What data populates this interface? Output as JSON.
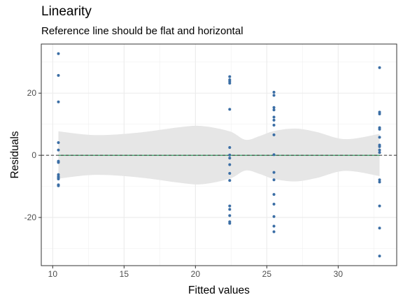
{
  "chart_data": {
    "type": "scatter",
    "title": "Linearity",
    "subtitle": "Reference line should be flat and horizontal",
    "xlabel": "Fitted values",
    "ylabel": "Residuals",
    "xlim": [
      9.2,
      34.1
    ],
    "ylim": [
      -35.5,
      35.8
    ],
    "x_ticks": [
      10,
      15,
      20,
      25,
      30
    ],
    "y_ticks": [
      -20,
      0,
      20
    ],
    "x_tick_labels": [
      "10",
      "15",
      "20",
      "25",
      "30"
    ],
    "y_tick_labels": [
      "-20",
      "0",
      "20"
    ],
    "grid": true,
    "reference_line_y": 0,
    "points_color": "#3b6ea5",
    "smooth_color": "#1a9850",
    "band_color": "#e6e6e6",
    "points": [
      {
        "x": 10.4,
        "y": 32.7
      },
      {
        "x": 10.4,
        "y": 25.7
      },
      {
        "x": 10.4,
        "y": 17.2
      },
      {
        "x": 10.4,
        "y": 4.1
      },
      {
        "x": 10.4,
        "y": 1.7
      },
      {
        "x": 10.4,
        "y": -1.9
      },
      {
        "x": 10.4,
        "y": -2.3
      },
      {
        "x": 10.4,
        "y": -6.2
      },
      {
        "x": 10.4,
        "y": -6.8
      },
      {
        "x": 10.4,
        "y": -7.2
      },
      {
        "x": 10.4,
        "y": -7.6
      },
      {
        "x": 10.4,
        "y": -9.5
      },
      {
        "x": 10.4,
        "y": -9.8
      },
      {
        "x": 22.4,
        "y": 25.3
      },
      {
        "x": 22.4,
        "y": 24.3
      },
      {
        "x": 22.4,
        "y": 23.8
      },
      {
        "x": 22.4,
        "y": 23.2
      },
      {
        "x": 22.4,
        "y": 14.8
      },
      {
        "x": 22.4,
        "y": 2.5
      },
      {
        "x": 22.4,
        "y": 0.1
      },
      {
        "x": 22.4,
        "y": -0.9
      },
      {
        "x": 22.4,
        "y": -3.0
      },
      {
        "x": 22.4,
        "y": -5.8
      },
      {
        "x": 22.4,
        "y": -8.1
      },
      {
        "x": 22.4,
        "y": -16.3
      },
      {
        "x": 22.4,
        "y": -17.4
      },
      {
        "x": 22.4,
        "y": -19.4
      },
      {
        "x": 22.4,
        "y": -21.4
      },
      {
        "x": 22.4,
        "y": -21.9
      },
      {
        "x": 25.5,
        "y": 20.3
      },
      {
        "x": 25.5,
        "y": 19.3
      },
      {
        "x": 25.5,
        "y": 15.4
      },
      {
        "x": 25.5,
        "y": 14.6
      },
      {
        "x": 25.5,
        "y": 12.3
      },
      {
        "x": 25.5,
        "y": 11.3
      },
      {
        "x": 25.5,
        "y": 9.7
      },
      {
        "x": 25.5,
        "y": 6.6
      },
      {
        "x": 25.5,
        "y": 0.2
      },
      {
        "x": 25.5,
        "y": -5.5
      },
      {
        "x": 25.5,
        "y": -7.9
      },
      {
        "x": 25.5,
        "y": -12.6
      },
      {
        "x": 25.5,
        "y": -15.7
      },
      {
        "x": 25.5,
        "y": -19.7
      },
      {
        "x": 25.5,
        "y": -22.8
      },
      {
        "x": 25.5,
        "y": -24.6
      },
      {
        "x": 32.9,
        "y": 28.2
      },
      {
        "x": 32.9,
        "y": 13.9
      },
      {
        "x": 32.9,
        "y": 13.3
      },
      {
        "x": 32.9,
        "y": 8.9
      },
      {
        "x": 32.9,
        "y": 8.4
      },
      {
        "x": 32.9,
        "y": 5.8
      },
      {
        "x": 32.9,
        "y": 3.3
      },
      {
        "x": 32.9,
        "y": 2.8
      },
      {
        "x": 32.9,
        "y": 1.7
      },
      {
        "x": 32.9,
        "y": 0.9
      },
      {
        "x": 32.9,
        "y": -7.9
      },
      {
        "x": 32.9,
        "y": -8.6
      },
      {
        "x": 32.9,
        "y": -16.3
      },
      {
        "x": 32.9,
        "y": -23.4
      },
      {
        "x": 32.9,
        "y": -32.4
      }
    ],
    "band": [
      {
        "x": 10.4,
        "lower": -7.5,
        "upper": 7.7
      },
      {
        "x": 13.0,
        "lower": -6.3,
        "upper": 6.5
      },
      {
        "x": 16.0,
        "lower": -7.1,
        "upper": 7.3
      },
      {
        "x": 19.0,
        "lower": -8.9,
        "upper": 9.1
      },
      {
        "x": 20.5,
        "lower": -9.3,
        "upper": 9.4
      },
      {
        "x": 22.4,
        "lower": -7.5,
        "upper": 7.7
      },
      {
        "x": 23.5,
        "lower": -4.9,
        "upper": 5.0
      },
      {
        "x": 24.5,
        "lower": -6.0,
        "upper": 6.2
      },
      {
        "x": 25.5,
        "lower": -7.6,
        "upper": 7.8
      },
      {
        "x": 27.0,
        "lower": -8.4,
        "upper": 8.6
      },
      {
        "x": 28.5,
        "lower": -7.3,
        "upper": 7.5
      },
      {
        "x": 30.5,
        "lower": -5.0,
        "upper": 5.2
      },
      {
        "x": 32.9,
        "lower": -6.7,
        "upper": 6.9
      }
    ]
  }
}
